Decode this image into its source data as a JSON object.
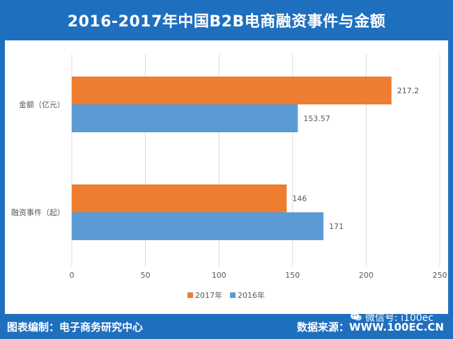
{
  "title": "2016-2017年中国B2B电商融资事件与金额",
  "footer": {
    "compiled_by": "图表编制：电子商务研究中心",
    "source_label": "数据来源：",
    "source_url": "WWW.100EC.CN"
  },
  "watermark": {
    "text": "微信号: i100ec",
    "icon": "wechat-icon"
  },
  "colors": {
    "frame": "#1f6fbf",
    "series_2017": "#ed7d31",
    "series_2016": "#5b9bd5",
    "grid": "#d9d9d9",
    "text": "#595959"
  },
  "chart_data": {
    "type": "bar",
    "orientation": "horizontal",
    "categories": [
      "金额（亿元）",
      "融资事件（起）"
    ],
    "series": [
      {
        "name": "2017年",
        "values": [
          217.2,
          146
        ],
        "labels": [
          "217.2",
          "146"
        ]
      },
      {
        "name": "2016年",
        "values": [
          153.57,
          171
        ],
        "labels": [
          "153.57",
          "171"
        ]
      }
    ],
    "xlim": [
      0,
      250
    ],
    "xticks": [
      "0",
      "50",
      "100",
      "150",
      "200",
      "250"
    ],
    "grid": true,
    "legend": "bottom"
  }
}
